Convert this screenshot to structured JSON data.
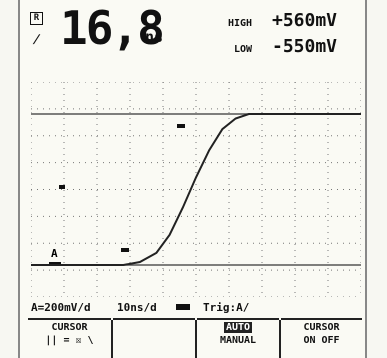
{
  "header": {
    "mode_mark": "R",
    "edge_symbol": "/",
    "reading_value": "16,8",
    "reading_unit": "ns",
    "high_label": "HIGH",
    "high_value": "+560mV",
    "low_label": "LOW",
    "low_value": "-550mV"
  },
  "status": {
    "volts_per_div": "A=200mV/d",
    "time_per_div": "10ns/d",
    "trigger": "Trig:A/"
  },
  "softkeys": [
    {
      "line1": "CURSOR",
      "line2": "|| = ☒ \\"
    },
    {
      "line1": "",
      "line2": ""
    },
    {
      "line1": "AUTO",
      "line2": "MANUAL"
    },
    {
      "line1": "CURSOR",
      "line2": "ON  OFF"
    }
  ],
  "plot": {
    "channel_marker": "A",
    "waveform": [
      [
        0.0,
        0.0
      ],
      [
        0.28,
        0.0
      ],
      [
        0.33,
        0.02
      ],
      [
        0.38,
        0.08
      ],
      [
        0.42,
        0.2
      ],
      [
        0.46,
        0.38
      ],
      [
        0.5,
        0.58
      ],
      [
        0.54,
        0.76
      ],
      [
        0.58,
        0.9
      ],
      [
        0.62,
        0.97
      ],
      [
        0.66,
        1.0
      ],
      [
        1.0,
        1.0
      ]
    ]
  }
}
